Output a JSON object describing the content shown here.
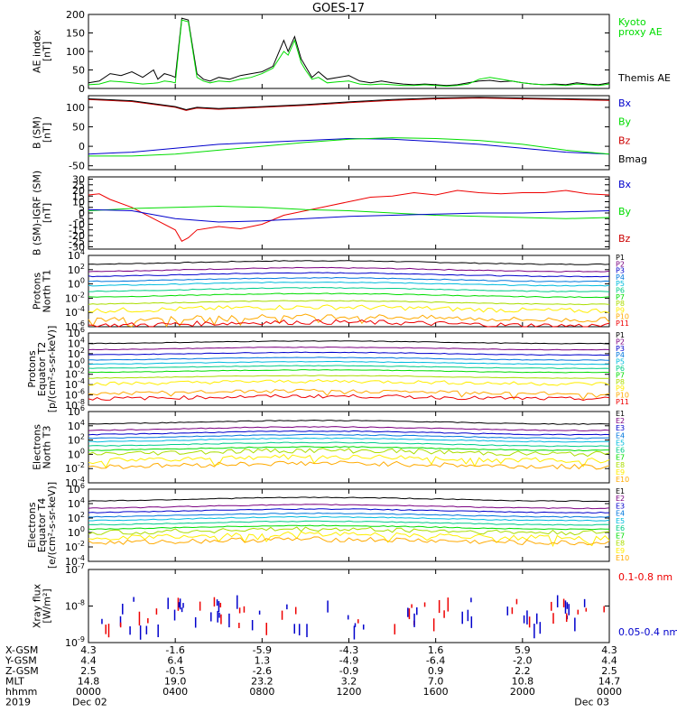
{
  "title": "GOES-17",
  "colors": {
    "P": [
      "#000000",
      "#7a0080",
      "#0000cc",
      "#0077dd",
      "#00bbdd",
      "#00cc88",
      "#00dd00",
      "#aadd00",
      "#ffee00",
      "#ffaa00",
      "#ee0000",
      "#aa0000"
    ],
    "E": [
      "#000000",
      "#7a0080",
      "#0000cc",
      "#0077dd",
      "#00bbdd",
      "#00cc88",
      "#00dd00",
      "#aadd00",
      "#ffee00",
      "#ffaa00",
      "#ee0000",
      "#aa0000"
    ]
  },
  "chart_data": [
    {
      "type": "line",
      "name_key": "ae",
      "ylabel": "AE index\n[nT]",
      "ylim": [
        0,
        200
      ],
      "yticks": [
        "0",
        "50",
        "100",
        "150",
        "200"
      ],
      "legend": [
        {
          "label": "Kyoto\nproxy AE",
          "color": "#00dd00"
        },
        {
          "label": "Themis AE",
          "color": "#000000"
        }
      ],
      "series": [
        {
          "name": "Themis AE",
          "color": "#000000",
          "x": [
            0,
            0.5,
            1,
            1.5,
            2,
            2.5,
            3,
            3.2,
            3.5,
            3.8,
            4,
            4.3,
            4.6,
            5,
            5.3,
            5.6,
            6,
            6.5,
            7,
            7.5,
            8,
            8.5,
            9,
            9.2,
            9.5,
            9.8,
            10,
            10.3,
            10.6,
            11,
            11.5,
            12,
            12.5,
            13,
            13.5,
            14,
            14.5,
            15,
            15.5,
            16,
            16.5,
            17,
            17.5,
            18,
            18.5,
            19,
            19.5,
            20,
            20.5,
            21,
            21.5,
            22,
            22.5,
            23,
            23.5,
            24
          ],
          "y": [
            15,
            20,
            40,
            35,
            45,
            30,
            50,
            25,
            40,
            35,
            30,
            190,
            185,
            40,
            25,
            20,
            30,
            25,
            35,
            40,
            45,
            60,
            130,
            100,
            140,
            80,
            60,
            30,
            45,
            25,
            30,
            35,
            20,
            15,
            20,
            15,
            12,
            10,
            12,
            10,
            8,
            10,
            15,
            20,
            22,
            18,
            20,
            15,
            12,
            10,
            12,
            10,
            15,
            12,
            10,
            15
          ]
        },
        {
          "name": "Kyoto proxy AE",
          "color": "#00dd00",
          "x": [
            0,
            0.5,
            1,
            1.5,
            2,
            2.5,
            3,
            3.2,
            3.5,
            3.8,
            4,
            4.3,
            4.6,
            5,
            5.3,
            5.6,
            6,
            6.5,
            7,
            7.5,
            8,
            8.5,
            9,
            9.2,
            9.5,
            9.8,
            10,
            10.3,
            10.6,
            11,
            11.5,
            12,
            12.5,
            13,
            13.5,
            14,
            14.5,
            15,
            15.5,
            16,
            16.5,
            17,
            17.5,
            18,
            18.5,
            19,
            19.5,
            20,
            20.5,
            21,
            21.5,
            22,
            22.5,
            23,
            23.5,
            24
          ],
          "y": [
            10,
            12,
            20,
            18,
            15,
            12,
            14,
            15,
            20,
            18,
            15,
            185,
            180,
            30,
            20,
            15,
            20,
            18,
            25,
            30,
            40,
            55,
            100,
            90,
            130,
            70,
            50,
            25,
            30,
            15,
            18,
            20,
            12,
            10,
            12,
            10,
            8,
            8,
            10,
            8,
            6,
            8,
            12,
            25,
            30,
            25,
            20,
            15,
            12,
            10,
            10,
            8,
            12,
            10,
            8,
            12
          ]
        }
      ]
    },
    {
      "type": "line",
      "name_key": "bsm",
      "ylabel": "B (SM)\n[nT]",
      "ylim": [
        -60,
        130
      ],
      "yticks": [
        "-50",
        "0",
        "50",
        "100"
      ],
      "legend": [
        {
          "label": "Bx",
          "color": "#0000cc"
        },
        {
          "label": "By",
          "color": "#00dd00"
        },
        {
          "label": "Bz",
          "color": "#cc0000"
        },
        {
          "label": "Bmag",
          "color": "#000000"
        }
      ],
      "series": [
        {
          "name": "Bz",
          "color": "#cc0000",
          "x": [
            0,
            2,
            4,
            4.5,
            5,
            6,
            8,
            10,
            12,
            14,
            16,
            18,
            20,
            22,
            24
          ],
          "y": [
            120,
            115,
            100,
            92,
            98,
            95,
            100,
            105,
            112,
            118,
            122,
            124,
            122,
            120,
            118
          ]
        },
        {
          "name": "Bmag",
          "color": "#000000",
          "x": [
            0,
            2,
            4,
            4.5,
            5,
            6,
            8,
            10,
            12,
            14,
            16,
            18,
            20,
            22,
            24
          ],
          "y": [
            122,
            117,
            102,
            94,
            100,
            97,
            102,
            107,
            114,
            120,
            124,
            126,
            124,
            122,
            120
          ]
        },
        {
          "name": "Bx",
          "color": "#0000cc",
          "x": [
            0,
            2,
            4,
            6,
            8,
            10,
            12,
            14,
            16,
            18,
            20,
            22,
            24
          ],
          "y": [
            -20,
            -15,
            -5,
            5,
            10,
            15,
            20,
            18,
            12,
            5,
            -5,
            -15,
            -20
          ]
        },
        {
          "name": "By",
          "color": "#00dd00",
          "x": [
            0,
            2,
            4,
            6,
            8,
            10,
            12,
            14,
            16,
            18,
            20,
            22,
            24
          ],
          "y": [
            -25,
            -25,
            -20,
            -10,
            0,
            10,
            18,
            22,
            20,
            15,
            5,
            -10,
            -20
          ]
        }
      ]
    },
    {
      "type": "line",
      "name_key": "bigrf",
      "ylabel": "B (SM)-IGRF (SM)\n[nT]",
      "ylim": [
        -32,
        32
      ],
      "yticks": [
        "-30",
        "-25",
        "-20",
        "-15",
        "-10",
        "-5",
        "0",
        "5",
        "10",
        "15",
        "20",
        "25",
        "30"
      ],
      "legend": [
        {
          "label": "Bx",
          "color": "#0000cc"
        },
        {
          "label": "By",
          "color": "#00dd00"
        },
        {
          "label": "Bz",
          "color": "#cc0000"
        }
      ],
      "series": [
        {
          "name": "Bz",
          "color": "#ee0000",
          "x": [
            0,
            0.5,
            1,
            2,
            3,
            4,
            4.3,
            4.6,
            5,
            6,
            7,
            8,
            9,
            10,
            11,
            12,
            13,
            14,
            15,
            16,
            17,
            18,
            19,
            20,
            21,
            22,
            23,
            24
          ],
          "y": [
            16,
            17,
            12,
            5,
            -5,
            -15,
            -25,
            -22,
            -15,
            -12,
            -14,
            -10,
            -2,
            2,
            6,
            10,
            14,
            15,
            18,
            16,
            20,
            18,
            17,
            18,
            18,
            20,
            17,
            16
          ]
        },
        {
          "name": "By",
          "color": "#00dd00",
          "x": [
            0,
            2,
            4,
            6,
            8,
            10,
            12,
            14,
            16,
            18,
            20,
            22,
            24
          ],
          "y": [
            2,
            4,
            5,
            6,
            5,
            3,
            2,
            0,
            -2,
            -3,
            -4,
            -5,
            -4
          ]
        },
        {
          "name": "Bx",
          "color": "#0000cc",
          "x": [
            0,
            2,
            4,
            6,
            8,
            10,
            12,
            14,
            16,
            18,
            20,
            22,
            24
          ],
          "y": [
            3,
            2,
            -5,
            -8,
            -7,
            -5,
            -3,
            -2,
            -1,
            0,
            0,
            1,
            2
          ]
        }
      ]
    },
    {
      "type": "line",
      "name_key": "pn",
      "ylabel": "Protons\nNorth T1",
      "scale": "log",
      "ylim": [
        -6,
        4
      ],
      "yticks": [
        "10^4",
        "10^2",
        "10^0",
        "10^-2",
        "10^-4",
        "10^-6"
      ],
      "legend": [
        "P1",
        "P2",
        "P3",
        "P4",
        "P5",
        "P6",
        "P7",
        "P8",
        "P9",
        "P10",
        "P11"
      ],
      "levels": [
        3.0,
        2.0,
        1.3,
        0.6,
        0.0,
        -0.8,
        -1.6,
        -2.6,
        -3.5,
        -4.8,
        -5.6
      ]
    },
    {
      "type": "line",
      "name_key": "pe",
      "ylabel": "Protons\nEquator T2\n[p/(cm²-s-sr-keV)]",
      "scale": "log",
      "ylim": [
        -8,
        6
      ],
      "yticks": [
        "10^6",
        "10^4",
        "10^2",
        "10^0",
        "10^-2",
        "10^-4",
        "10^-6",
        "10^-8"
      ],
      "legend": [
        "P1",
        "P2",
        "P3",
        "P4",
        "P5",
        "P6",
        "P7",
        "P8",
        "P9",
        "P10",
        "P11"
      ],
      "levels": [
        4.2,
        3.0,
        2.0,
        1.0,
        0.2,
        -0.6,
        -1.4,
        -2.5,
        -3.6,
        -5.5,
        -6.5
      ]
    },
    {
      "type": "line",
      "name_key": "en",
      "ylabel": "Electrons\nNorth T3",
      "scale": "log",
      "ylim": [
        -4,
        6
      ],
      "yticks": [
        "10^6",
        "10^4",
        "10^2",
        "10^0",
        "10^-2",
        "10^-4"
      ],
      "legend": [
        "E1",
        "E2",
        "E3",
        "E4",
        "E5",
        "E6",
        "E7",
        "E8",
        "E9",
        "E10"
      ],
      "levels": [
        4.5,
        3.6,
        3.0,
        2.5,
        2.0,
        1.4,
        0.8,
        0.3,
        -0.6,
        -1.5
      ]
    },
    {
      "type": "line",
      "name_key": "ee",
      "ylabel": "Electrons\nEquator T4\n[e/(cm²-s-sr-keV)]",
      "scale": "log",
      "ylim": [
        -4,
        6
      ],
      "yticks": [
        "10^6",
        "10^4",
        "10^2",
        "10^0",
        "10^-2",
        "10^-4"
      ],
      "legend": [
        "E1",
        "E2",
        "E3",
        "E4",
        "E5",
        "E6",
        "E7",
        "E8",
        "E9",
        "E10"
      ],
      "levels": [
        4.6,
        3.6,
        3.0,
        2.4,
        1.9,
        1.3,
        0.7,
        0.2,
        -0.5,
        -1.2
      ]
    },
    {
      "type": "bar",
      "name_key": "xray",
      "ylabel": "Xray flux\n[W/m²]",
      "scale": "log",
      "ylim": [
        -9,
        -7
      ],
      "yticks": [
        "10^-7",
        "10^-8",
        "10^-9"
      ],
      "legend": [
        {
          "label": "0.1-0.8 nm",
          "color": "#ee0000"
        },
        {
          "label": "0.05-0.4 nm",
          "color": "#0000cc"
        }
      ]
    }
  ],
  "xaxis": {
    "ticks_hours": [
      0,
      4,
      8,
      12,
      16,
      20,
      24
    ],
    "rows": [
      {
        "label": "X-GSM",
        "values": [
          "4.3",
          "-1.6",
          "-5.9",
          "-4.3",
          "1.6",
          "5.9",
          "4.3"
        ]
      },
      {
        "label": "Y-GSM",
        "values": [
          "4.4",
          "6.4",
          "1.3",
          "-4.9",
          "-6.4",
          "-2.0",
          "4.4"
        ]
      },
      {
        "label": "Z-GSM",
        "values": [
          "2.5",
          "-0.5",
          "-2.6",
          "-0.9",
          "0.9",
          "2.2",
          "2.5"
        ]
      },
      {
        "label": "MLT",
        "values": [
          "14.8",
          "19.0",
          "23.2",
          "3.2",
          "7.0",
          "10.8",
          "14.7"
        ]
      },
      {
        "label": "hhmm",
        "values": [
          "0000",
          "0400",
          "0800",
          "1200",
          "1600",
          "2000",
          "0000"
        ]
      },
      {
        "label": "2019",
        "values": [
          "Dec 02",
          "",
          "",
          "",
          "",
          "",
          "Dec 03"
        ]
      }
    ]
  }
}
